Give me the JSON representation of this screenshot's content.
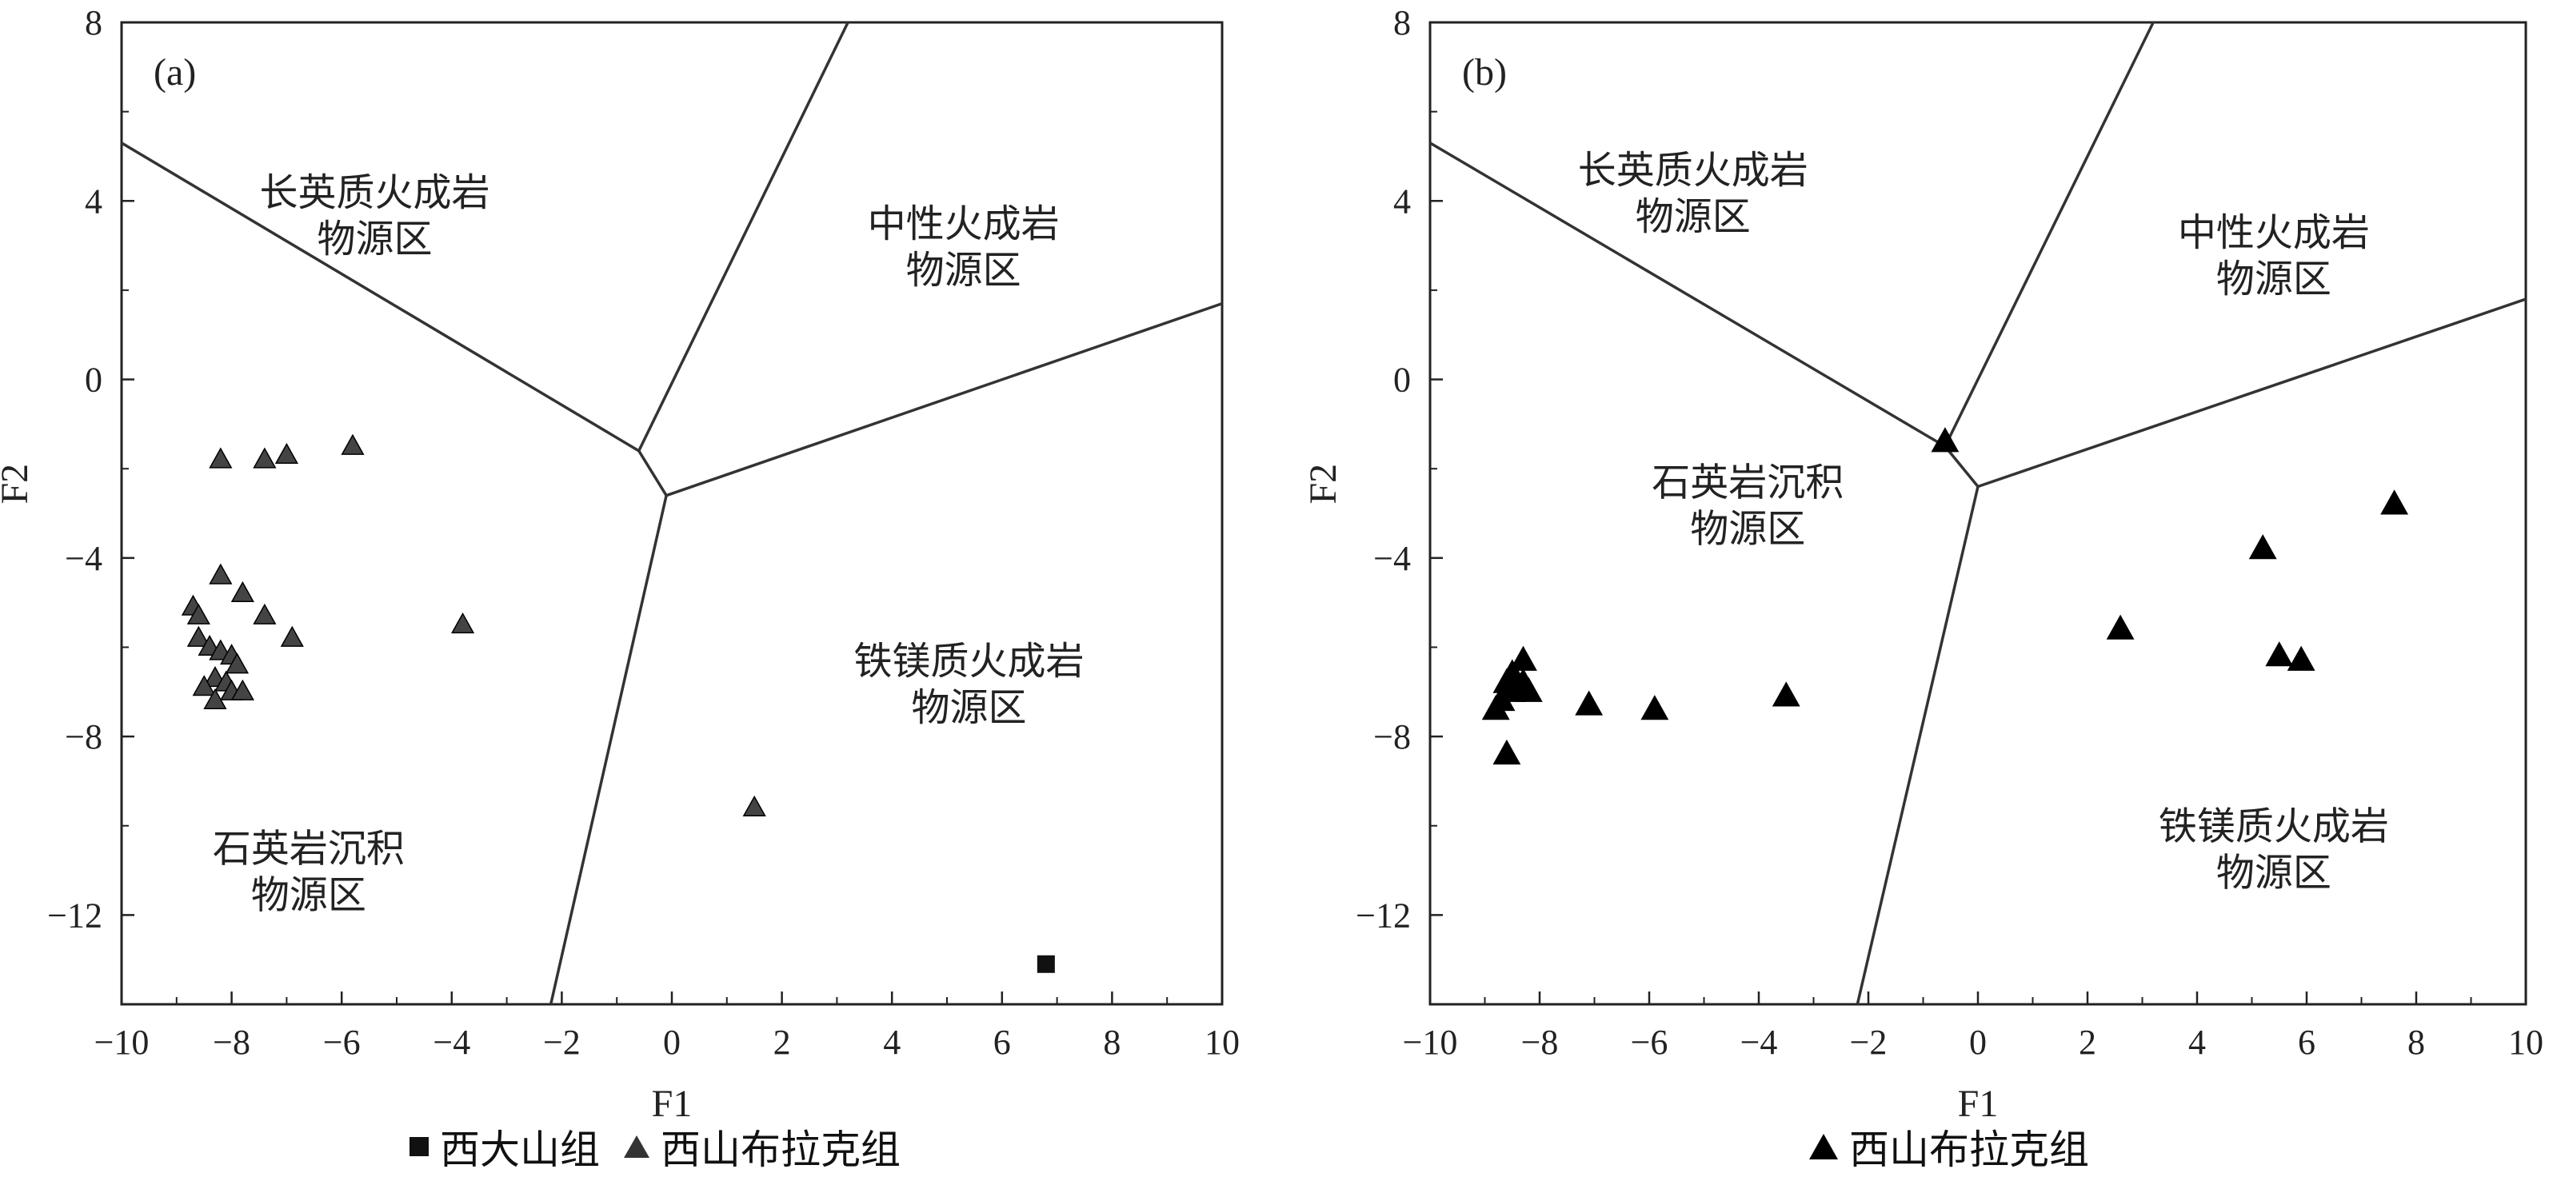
{
  "chart_data": [
    {
      "type": "scatter",
      "panel_label": "(a)",
      "xlabel": "F1",
      "ylabel": "F2",
      "xlim": [
        -10,
        10
      ],
      "ylim": [
        -14,
        8
      ],
      "xticks": [
        -10,
        -8,
        -6,
        -4,
        -2,
        0,
        2,
        4,
        6,
        8,
        10
      ],
      "yticks": [
        8,
        4,
        0,
        -4,
        -8,
        -12
      ],
      "grid": false,
      "boundaries": [
        {
          "name": "upper-left",
          "points": [
            [
              -10,
              5.3
            ],
            [
              -0.6,
              -1.6
            ]
          ]
        },
        {
          "name": "upper-middle",
          "points": [
            [
              -0.6,
              -1.6
            ],
            [
              3.2,
              8
            ]
          ]
        },
        {
          "name": "center-link",
          "points": [
            [
              -0.6,
              -1.6
            ],
            [
              -0.1,
              -2.6
            ]
          ]
        },
        {
          "name": "right",
          "points": [
            [
              -0.1,
              -2.6
            ],
            [
              10,
              1.7
            ]
          ]
        },
        {
          "name": "lower",
          "points": [
            [
              -0.1,
              -2.6
            ],
            [
              -2.2,
              -14
            ]
          ]
        }
      ],
      "regions": [
        {
          "lines": [
            "长英质火成岩",
            "物源区"
          ],
          "at": [
            -5.4,
            3.9
          ]
        },
        {
          "lines": [
            "中性火成岩",
            "物源区"
          ],
          "at": [
            5.3,
            3.2
          ]
        },
        {
          "lines": [
            "铁镁质火成岩",
            "物源区"
          ],
          "at": [
            5.4,
            -6.6
          ]
        },
        {
          "lines": [
            "石英岩沉积",
            "物源区"
          ],
          "at": [
            -6.6,
            -10.8
          ]
        }
      ],
      "series": [
        {
          "name": "西大山组",
          "marker": "square",
          "color": "#111111",
          "points": [
            [
              6.8,
              -13.1
            ]
          ]
        },
        {
          "name": "西山布拉克组",
          "marker": "triangle",
          "color": "#444444",
          "points": [
            [
              -8.2,
              -1.8
            ],
            [
              -7.4,
              -1.8
            ],
            [
              -7.0,
              -1.7
            ],
            [
              -5.8,
              -1.5
            ],
            [
              -8.2,
              -4.4
            ],
            [
              -7.8,
              -4.8
            ],
            [
              -7.4,
              -5.3
            ],
            [
              -8.7,
              -5.1
            ],
            [
              -8.6,
              -5.3
            ],
            [
              -8.6,
              -5.8
            ],
            [
              -8.4,
              -6.0
            ],
            [
              -8.2,
              -6.1
            ],
            [
              -8.0,
              -6.2
            ],
            [
              -7.9,
              -6.4
            ],
            [
              -6.9,
              -5.8
            ],
            [
              -3.8,
              -5.5
            ],
            [
              -8.3,
              -6.7
            ],
            [
              -8.1,
              -6.8
            ],
            [
              -8.5,
              -6.9
            ],
            [
              -8.0,
              -7.0
            ],
            [
              -7.8,
              -7.0
            ],
            [
              -8.3,
              -7.2
            ],
            [
              1.5,
              -9.6
            ]
          ]
        }
      ]
    },
    {
      "type": "scatter",
      "panel_label": "(b)",
      "xlabel": "F1",
      "ylabel": "F2",
      "xlim": [
        -10,
        10
      ],
      "ylim": [
        -14,
        8
      ],
      "xticks": [
        -10,
        -8,
        -6,
        -4,
        -2,
        0,
        2,
        4,
        6,
        8,
        10
      ],
      "yticks": [
        8,
        4,
        0,
        -4,
        -8,
        -12
      ],
      "grid": false,
      "boundaries": [
        {
          "name": "upper-left",
          "points": [
            [
              -10,
              5.3
            ],
            [
              -0.6,
              -1.5
            ]
          ]
        },
        {
          "name": "upper-middle",
          "points": [
            [
              -0.6,
              -1.5
            ],
            [
              3.2,
              8
            ]
          ]
        },
        {
          "name": "center-link",
          "points": [
            [
              -0.6,
              -1.5
            ],
            [
              0,
              -2.4
            ]
          ]
        },
        {
          "name": "right",
          "points": [
            [
              0,
              -2.4
            ],
            [
              10,
              1.8
            ]
          ]
        },
        {
          "name": "lower",
          "points": [
            [
              0,
              -2.4
            ],
            [
              -2.2,
              -14
            ]
          ]
        }
      ],
      "regions": [
        {
          "lines": [
            "长英质火成岩",
            "物源区"
          ],
          "at": [
            -5.2,
            4.4
          ]
        },
        {
          "lines": [
            "中性火成岩",
            "物源区"
          ],
          "at": [
            5.4,
            3.0
          ]
        },
        {
          "lines": [
            "石英岩沉积",
            "物源区"
          ],
          "at": [
            -4.2,
            -2.6
          ]
        },
        {
          "lines": [
            "铁镁质火成岩",
            "物源区"
          ],
          "at": [
            5.4,
            -10.3
          ]
        }
      ],
      "series": [
        {
          "name": "西山布拉克组",
          "marker": "triangle",
          "color": "#000000",
          "points": [
            [
              -0.6,
              -1.4
            ],
            [
              -8.3,
              -6.3
            ],
            [
              -8.5,
              -6.6
            ],
            [
              -8.3,
              -6.8
            ],
            [
              -8.5,
              -7.0
            ],
            [
              -8.6,
              -6.8
            ],
            [
              -8.2,
              -7.0
            ],
            [
              -8.7,
              -7.2
            ],
            [
              -8.8,
              -7.4
            ],
            [
              -8.6,
              -8.4
            ],
            [
              -7.1,
              -7.3
            ],
            [
              -5.9,
              -7.4
            ],
            [
              -3.5,
              -7.1
            ],
            [
              2.6,
              -5.6
            ],
            [
              5.2,
              -3.8
            ],
            [
              5.5,
              -6.2
            ],
            [
              5.9,
              -6.3
            ],
            [
              7.6,
              -2.8
            ]
          ]
        }
      ]
    }
  ],
  "legends": [
    {
      "items": [
        {
          "label": "西大山组",
          "marker": "square"
        },
        {
          "label": "西山布拉克组",
          "marker": "triangle"
        }
      ]
    },
    {
      "items": [
        {
          "label": "西山布拉克组",
          "marker": "triangle"
        }
      ]
    }
  ]
}
